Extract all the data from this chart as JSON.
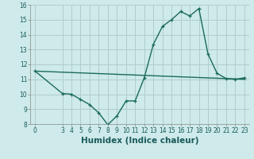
{
  "title": "",
  "xlabel": "Humidex (Indice chaleur)",
  "ylabel": "",
  "bg_color": "#ceeaea",
  "grid_color": "#b0cccc",
  "line_color": "#1a6b5a",
  "xlim": [
    -0.5,
    23.5
  ],
  "ylim": [
    8,
    16
  ],
  "yticks": [
    8,
    9,
    10,
    11,
    12,
    13,
    14,
    15,
    16
  ],
  "xticks": [
    0,
    3,
    4,
    5,
    6,
    7,
    8,
    9,
    10,
    11,
    12,
    13,
    14,
    15,
    16,
    17,
    18,
    19,
    20,
    21,
    22,
    23
  ],
  "curve_x": [
    0,
    3,
    4,
    5,
    6,
    7,
    8,
    9,
    10,
    11,
    12,
    13,
    14,
    15,
    16,
    17,
    18,
    19,
    20,
    21,
    22,
    23
  ],
  "curve_y": [
    11.55,
    10.05,
    10.0,
    9.65,
    9.3,
    8.75,
    7.95,
    8.55,
    9.55,
    9.55,
    11.1,
    13.35,
    14.55,
    15.0,
    15.55,
    15.25,
    15.75,
    12.7,
    11.4,
    11.05,
    11.0,
    11.1
  ],
  "trend_x": [
    0,
    23
  ],
  "trend_y": [
    11.55,
    11.0
  ],
  "marker_size": 3.5,
  "line_width": 1.0,
  "tick_fontsize": 5.5,
  "label_fontsize": 7.5
}
